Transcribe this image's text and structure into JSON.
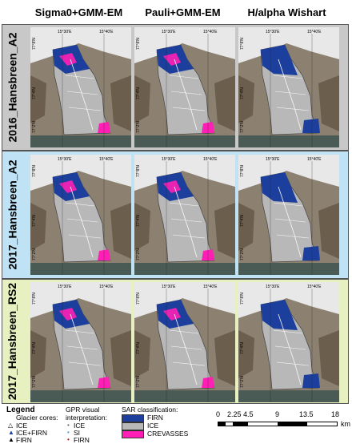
{
  "columns": [
    "Sigma0+GMM-EM",
    "Pauli+GMM-EM",
    "H/alpha Wishart"
  ],
  "rows": [
    {
      "label": "2016_Hansbreen_A2",
      "color": "#c8c8c8"
    },
    {
      "label": "2017_Hansbreen_A2",
      "color": "#bfe3f5"
    },
    {
      "label": "2017_Hansbreen_RS2",
      "color": "#e6f0c0"
    }
  ],
  "map_labels": {
    "lon_left": "15°30'E",
    "lon_right": "15°40'E",
    "lat_top": "77°8'N",
    "lat_mid": "77°4'N",
    "lat_bottom": "77°2'N"
  },
  "legend": {
    "title": "Legend",
    "glacier_cores_title": "Glacier cores:",
    "glacier_cores": [
      "ICE",
      "ICE+FIRN",
      "FIRN"
    ],
    "gpr_title_line1": "GPR visual",
    "gpr_title_line2": "interpretation:",
    "gpr_items": [
      "ICE",
      "SI",
      "FIRN"
    ],
    "sar_title": "SAR classification:",
    "sar_items": [
      {
        "label": "FIRN",
        "color": "#1c3f9e"
      },
      {
        "label": "ICE",
        "color": "#b8b8b8"
      },
      {
        "label": "CREVASSES",
        "color": "#ff1fb4"
      }
    ]
  },
  "scale_bar": {
    "ticks": [
      "0",
      "2.25",
      "4.5",
      "9",
      "13.5",
      "18"
    ],
    "unit": "km"
  },
  "colors": {
    "firn": "#1c3f9e",
    "ice": "#b8b8b8",
    "crevasses": "#ff1fb4",
    "rock": "#7a6a55",
    "snow": "#e8e8e8",
    "sea": "#4a5a55"
  }
}
